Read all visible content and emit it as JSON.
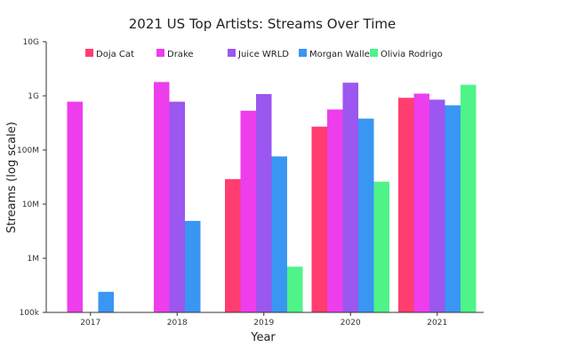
{
  "chart_data": {
    "type": "bar",
    "title": "2021 US Top Artists: Streams Over Time",
    "xlabel": "Year",
    "ylabel": "Streams (log scale)",
    "y_scale": "log",
    "ylim": [
      100000,
      10000000000
    ],
    "y_ticks": [
      {
        "value": 100000,
        "label": "100k"
      },
      {
        "value": 1000000,
        "label": "1M"
      },
      {
        "value": 10000000,
        "label": "10M"
      },
      {
        "value": 100000000,
        "label": "100M"
      },
      {
        "value": 1000000000,
        "label": "1G"
      },
      {
        "value": 10000000000,
        "label": "10G"
      }
    ],
    "categories": [
      "2017",
      "2018",
      "2019",
      "2020",
      "2021"
    ],
    "grid": false,
    "legend_position": "top",
    "series": [
      {
        "name": "Doja Cat",
        "color": "#ff3d6e",
        "values": [
          null,
          null,
          29000000,
          270000000,
          920000000
        ]
      },
      {
        "name": "Drake",
        "color": "#ee3dec",
        "values": [
          780000000,
          1800000000,
          530000000,
          560000000,
          1100000000
        ]
      },
      {
        "name": "Juice WRLD",
        "color": "#9b57f0",
        "values": [
          null,
          780000000,
          1080000000,
          1750000000,
          850000000
        ]
      },
      {
        "name": "Morgan Wallen",
        "color": "#3996f3",
        "values": [
          240000,
          4900000,
          76000000,
          380000000,
          670000000
        ]
      },
      {
        "name": "Olivia Rodrigo",
        "color": "#4ef488",
        "values": [
          null,
          null,
          700000,
          26000000,
          1600000000
        ]
      }
    ]
  }
}
